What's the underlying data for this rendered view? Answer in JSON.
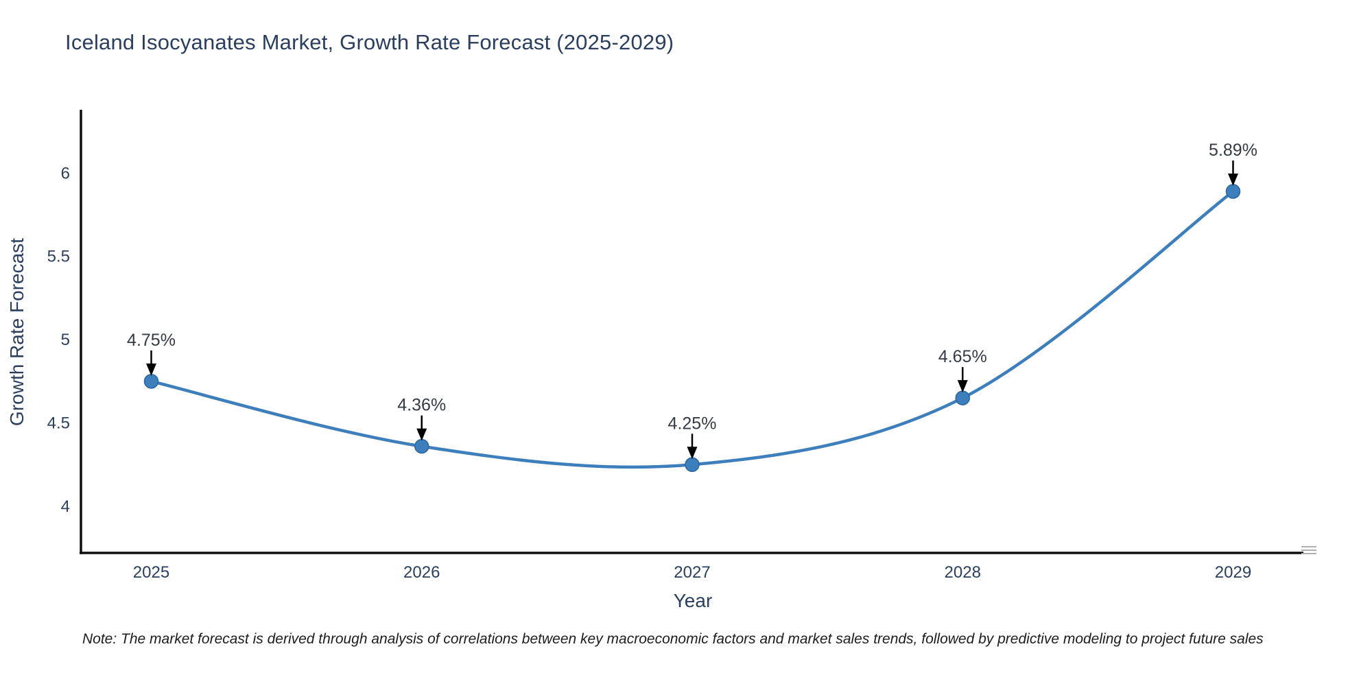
{
  "note": {
    "text": "Note: The market forecast is derived through analysis of correlations between key macroeconomic factors and market sales trends, followed by predictive modeling to project future sales"
  },
  "chart_data": {
    "type": "line",
    "title": "Iceland Isocyanates Market, Growth Rate Forecast (2025-2029)",
    "xlabel": "Year",
    "ylabel": "Growth Rate Forecast",
    "x": [
      2025,
      2026,
      2027,
      2028,
      2029
    ],
    "values": [
      4.75,
      4.36,
      4.25,
      4.65,
      5.89
    ],
    "point_labels": [
      "4.75%",
      "4.36%",
      "4.25%",
      "4.65%",
      "5.89%"
    ],
    "xtick_labels": [
      "2025",
      "2026",
      "2027",
      "2028",
      "2029"
    ],
    "ytick_values": [
      4,
      4.5,
      5,
      5.5,
      6
    ],
    "ytick_labels": [
      "4",
      "4.5",
      "5",
      "5.5",
      "6"
    ],
    "xlim": [
      2024.74,
      2029.26
    ],
    "ylim": [
      3.72,
      6.38
    ],
    "line_shape": "spline",
    "grid": false,
    "legend": "none",
    "line_color": "#3d7ebd",
    "marker_color": "#3d7ebd",
    "marker_edge_color": "#2a66a0",
    "axis_color": "#0e0e0e",
    "annotation_arrow_color": "#000000",
    "annotation_text_color": "#333b46",
    "text_color": "#2a3f5f"
  }
}
